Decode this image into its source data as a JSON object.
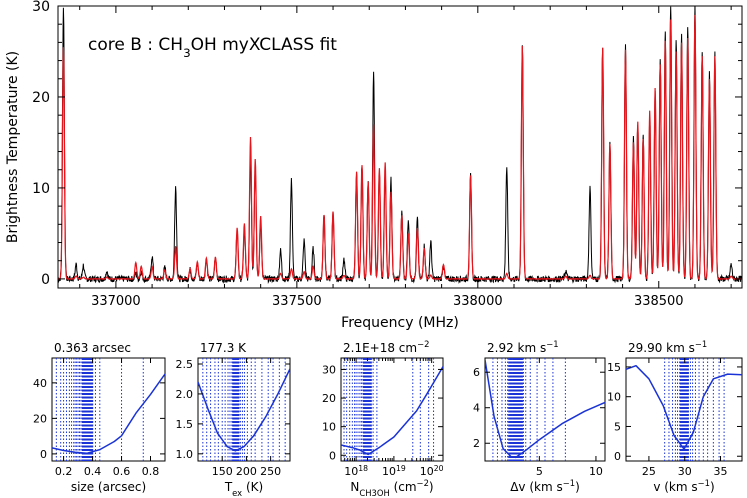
{
  "colors": {
    "observed": "#000000",
    "model": "#e8141b",
    "fit": "#1a33d6",
    "axes": "#000000"
  },
  "chart_data": [
    {
      "type": "line",
      "annotation": {
        "prefix": "core B : CH",
        "sub": "3",
        "suffix": "OH myXCLASS fit"
      },
      "xlabel": "Frequency (MHz)",
      "ylabel": "Brightness Temperature (K)",
      "xlim": [
        336840,
        338730
      ],
      "ylim": [
        -1,
        30
      ],
      "xticks": [
        337000,
        337500,
        338000,
        338500
      ],
      "xtick_labels": [
        "337000",
        "337500",
        "338000",
        "338500"
      ],
      "yticks": [
        0,
        10,
        20,
        30
      ],
      "ytick_labels": [
        "0",
        "10",
        "20",
        "30"
      ],
      "series": [],
      "lines": [
        {
          "x": 336855,
          "obs": 30,
          "mod": 25.5
        },
        {
          "x": 336890,
          "obs": 1.6,
          "mod": 0.3
        },
        {
          "x": 336910,
          "obs": 1.5,
          "mod": 0.2
        },
        {
          "x": 336975,
          "obs": 0.9,
          "mod": 0.2
        },
        {
          "x": 337055,
          "obs": 0.6,
          "mod": 1.8
        },
        {
          "x": 337070,
          "obs": 0.8,
          "mod": 1.4
        },
        {
          "x": 337100,
          "obs": 2.5,
          "mod": 1.3
        },
        {
          "x": 337135,
          "obs": 1.2,
          "mod": 1.0
        },
        {
          "x": 337165,
          "obs": 10.2,
          "mod": 3.6
        },
        {
          "x": 337205,
          "obs": 1.0,
          "mod": 1.1
        },
        {
          "x": 337225,
          "obs": 1.6,
          "mod": 1.9
        },
        {
          "x": 337250,
          "obs": 2.1,
          "mod": 2.3
        },
        {
          "x": 337275,
          "obs": 2.3,
          "mod": 2.4
        },
        {
          "x": 337335,
          "obs": 5.3,
          "mod": 5.6
        },
        {
          "x": 337355,
          "obs": 5.4,
          "mod": 6.1
        },
        {
          "x": 337372,
          "obs": 13.8,
          "mod": 15.6
        },
        {
          "x": 337385,
          "obs": 12.4,
          "mod": 13.2
        },
        {
          "x": 337400,
          "obs": 6.2,
          "mod": 6.9
        },
        {
          "x": 337455,
          "obs": 3.1,
          "mod": 0.6
        },
        {
          "x": 337485,
          "obs": 10.8,
          "mod": 1.1
        },
        {
          "x": 337520,
          "obs": 4.2,
          "mod": 0.8
        },
        {
          "x": 337545,
          "obs": 3.3,
          "mod": 1.4
        },
        {
          "x": 337575,
          "obs": 7.2,
          "mod": 7.0
        },
        {
          "x": 337600,
          "obs": 7.4,
          "mod": 7.4
        },
        {
          "x": 337630,
          "obs": 2.2,
          "mod": 0.4
        },
        {
          "x": 337665,
          "obs": 11.6,
          "mod": 11.8
        },
        {
          "x": 337680,
          "obs": 12.6,
          "mod": 12.5
        },
        {
          "x": 337697,
          "obs": 10.5,
          "mod": 10.7
        },
        {
          "x": 337712,
          "obs": 23.0,
          "mod": 17.0
        },
        {
          "x": 337728,
          "obs": 11.9,
          "mod": 12.2
        },
        {
          "x": 337744,
          "obs": 11.8,
          "mod": 12.8
        },
        {
          "x": 337760,
          "obs": 10.9,
          "mod": 9.6
        },
        {
          "x": 337790,
          "obs": 7.2,
          "mod": 7.0
        },
        {
          "x": 337808,
          "obs": 6.6,
          "mod": 5.0
        },
        {
          "x": 337833,
          "obs": 6.6,
          "mod": 5.6
        },
        {
          "x": 337852,
          "obs": 3.6,
          "mod": 3.4
        },
        {
          "x": 337870,
          "obs": 4.1,
          "mod": 0.4
        },
        {
          "x": 337905,
          "obs": 1.5,
          "mod": 1.6
        },
        {
          "x": 337980,
          "obs": 11.3,
          "mod": 11.4
        },
        {
          "x": 338080,
          "obs": 12.3,
          "mod": 0.6
        },
        {
          "x": 338123,
          "obs": 25.8,
          "mod": 25.6
        },
        {
          "x": 338243,
          "obs": 0.9,
          "mod": 0.3
        },
        {
          "x": 338310,
          "obs": 10.0,
          "mod": 0.4
        },
        {
          "x": 338345,
          "obs": 25.7,
          "mod": 25.4
        },
        {
          "x": 338365,
          "obs": 14.9,
          "mod": 14.8
        },
        {
          "x": 338408,
          "obs": 25.7,
          "mod": 25.2
        },
        {
          "x": 338430,
          "obs": 15.5,
          "mod": 15.0
        },
        {
          "x": 338442,
          "obs": 17.0,
          "mod": 17.3
        },
        {
          "x": 338457,
          "obs": 15.7,
          "mod": 15.4
        },
        {
          "x": 338475,
          "obs": 18.0,
          "mod": 18.5
        },
        {
          "x": 338490,
          "obs": 20.5,
          "mod": 21.0
        },
        {
          "x": 338504,
          "obs": 24.2,
          "mod": 23.6
        },
        {
          "x": 338518,
          "obs": 27.5,
          "mod": 26.2
        },
        {
          "x": 338533,
          "obs": 30,
          "mod": 28.5
        },
        {
          "x": 338548,
          "obs": 26.5,
          "mod": 25.0
        },
        {
          "x": 338563,
          "obs": 27.0,
          "mod": 26.0
        },
        {
          "x": 338580,
          "obs": 28.0,
          "mod": 26.5
        },
        {
          "x": 338600,
          "obs": 30,
          "mod": 29.0
        },
        {
          "x": 338620,
          "obs": 25.0,
          "mod": 24.5
        },
        {
          "x": 338640,
          "obs": 22.5,
          "mod": 22.0
        },
        {
          "x": 338655,
          "obs": 24.8,
          "mod": 24.5
        },
        {
          "x": 338700,
          "obs": 1.6,
          "mod": 0.3
        }
      ]
    },
    {
      "type": "line",
      "title": "0.363 arcsec",
      "xlabel": "size (arcsec)",
      "xscale": "linear",
      "xlim": [
        0.12,
        0.9
      ],
      "ylim": [
        -4,
        54
      ],
      "xticks": [
        0.2,
        0.4,
        0.6,
        0.8
      ],
      "xtick_labels": [
        "0.2",
        "0.4",
        "0.6",
        "0.8"
      ],
      "yticks": [
        0,
        20,
        40
      ],
      "ytick_labels": [
        "0",
        "20",
        "40"
      ],
      "curve": [
        [
          0.12,
          3.4
        ],
        [
          0.2,
          1.9
        ],
        [
          0.28,
          0.9
        ],
        [
          0.363,
          0.4
        ],
        [
          0.45,
          2.4
        ],
        [
          0.55,
          7.0
        ],
        [
          0.6,
          10.2
        ],
        [
          0.7,
          23.0
        ],
        [
          0.8,
          33.5
        ],
        [
          0.9,
          45.0
        ]
      ],
      "tried": [
        0.15,
        0.18,
        0.2,
        0.22,
        0.24,
        0.255,
        0.27,
        0.28,
        0.29,
        0.3,
        0.31,
        0.32,
        0.33,
        0.34,
        0.35,
        0.36,
        0.37,
        0.38,
        0.39,
        0.4,
        0.42,
        0.45,
        0.6,
        0.75
      ],
      "best": 0.363,
      "best_band": [
        0.33,
        0.4
      ]
    },
    {
      "type": "line",
      "title": "177.3 K",
      "xlabel": {
        "main": "T",
        "sub": "ex",
        "suffix": " (K)"
      },
      "xscale": "linear",
      "xlim": [
        100,
        290
      ],
      "ylim": [
        0.88,
        2.6
      ],
      "xticks": [
        150,
        200,
        250
      ],
      "xtick_labels": [
        "150",
        "200",
        "250"
      ],
      "yticks": [
        1.0,
        1.5,
        2.0,
        2.5
      ],
      "ytick_labels": [
        "1.0",
        "1.5",
        "2.0",
        "2.5"
      ],
      "curve": [
        [
          100,
          2.2
        ],
        [
          120,
          1.76
        ],
        [
          140,
          1.35
        ],
        [
          160,
          1.12
        ],
        [
          177.3,
          1.05
        ],
        [
          195,
          1.12
        ],
        [
          215,
          1.3
        ],
        [
          240,
          1.62
        ],
        [
          265,
          2.0
        ],
        [
          290,
          2.42
        ]
      ],
      "tried": [
        110,
        118,
        126,
        135,
        142,
        150,
        156,
        162,
        166,
        170,
        173,
        176,
        179,
        182,
        185,
        188,
        192,
        196,
        202,
        210,
        218,
        232,
        245,
        255,
        268,
        280
      ],
      "best": 177.3,
      "best_band": [
        172,
        184
      ]
    },
    {
      "type": "line",
      "title": {
        "main": "2.1E+18 cm",
        "sup": "−2"
      },
      "xlabel": {
        "main": "N",
        "sub": "CH3OH",
        "suffix": " (cm",
        "sup": "−2",
        "end": ")"
      },
      "xscale": "log",
      "xlim": [
        17.6,
        20.3
      ],
      "ylim": [
        -2,
        34
      ],
      "xticks": [
        18,
        19,
        20
      ],
      "xtick_labels": [
        "10",
        "10",
        "10"
      ],
      "xtick_sups": [
        "18",
        "19",
        "20"
      ],
      "yticks": [
        0,
        10,
        20,
        30
      ],
      "ytick_labels": [
        "0",
        "10",
        "20",
        "30"
      ],
      "curve": [
        [
          17.6,
          3.6
        ],
        [
          17.9,
          2.7
        ],
        [
          18.1,
          1.8
        ],
        [
          18.32,
          0.3
        ],
        [
          18.6,
          2.6
        ],
        [
          19.0,
          6.4
        ],
        [
          19.6,
          15.5
        ],
        [
          19.9,
          22.0
        ],
        [
          20.3,
          31.0
        ]
      ],
      "tried": [
        17.68,
        17.75,
        17.83,
        17.9,
        17.96,
        18.0,
        18.05,
        18.1,
        18.14,
        18.18,
        18.22,
        18.26,
        18.3,
        18.34,
        18.38,
        18.45,
        18.55,
        19.5,
        19.7,
        19.92,
        20.05
      ],
      "best": 18.32,
      "best_band": [
        18.2,
        18.4
      ]
    },
    {
      "type": "line",
      "title": {
        "main": "2.92 km s",
        "sup": "−1"
      },
      "xlabel": {
        "main": "Δv (km s",
        "sup": "−1",
        "end": ")"
      },
      "xscale": "linear",
      "xlim": [
        0.2,
        10.8
      ],
      "ylim": [
        1.0,
        6.8
      ],
      "xticks": [
        5,
        10
      ],
      "xtick_labels": [
        "5",
        "10"
      ],
      "yticks": [
        2,
        4,
        6
      ],
      "ytick_labels": [
        "2",
        "4",
        "6"
      ],
      "curve": [
        [
          0.2,
          6.7
        ],
        [
          1.0,
          3.5
        ],
        [
          1.8,
          1.7
        ],
        [
          2.5,
          1.25
        ],
        [
          2.92,
          1.2
        ],
        [
          3.8,
          1.6
        ],
        [
          5,
          2.2
        ],
        [
          7,
          3.1
        ],
        [
          9,
          3.8
        ],
        [
          10.8,
          4.3
        ]
      ],
      "tried": [
        0.9,
        1.3,
        1.7,
        2.0,
        2.2,
        2.4,
        2.55,
        2.7,
        2.85,
        3.0,
        3.15,
        3.3,
        3.45,
        3.6,
        3.8,
        4.2,
        4.8,
        5.5,
        6.2,
        7.3
      ],
      "best": 2.92,
      "best_band": [
        2.3,
        3.5
      ]
    },
    {
      "type": "line",
      "title": {
        "main": "29.90 km s",
        "sup": "−1"
      },
      "xlabel": {
        "main": "v (km s",
        "sup": "−1",
        "end": ")"
      },
      "xscale": "linear",
      "xlim": [
        21.8,
        38.0
      ],
      "ylim": [
        -0.8,
        16.5
      ],
      "xticks": [
        25,
        30,
        35
      ],
      "xtick_labels": [
        "25",
        "30",
        "35"
      ],
      "yticks": [
        0,
        5,
        10,
        15
      ],
      "ytick_labels": [
        "0",
        "5",
        "10",
        "15"
      ],
      "curve": [
        [
          21.8,
          14.6
        ],
        [
          23.2,
          15.2
        ],
        [
          25,
          13.0
        ],
        [
          27,
          8.5
        ],
        [
          28.5,
          3.5
        ],
        [
          29.9,
          1.2
        ],
        [
          31.2,
          4.0
        ],
        [
          32.6,
          10.0
        ],
        [
          34,
          13.0
        ],
        [
          36,
          13.8
        ],
        [
          38,
          13.7
        ]
      ],
      "tried": [
        27.2,
        27.8,
        28.3,
        28.7,
        29.0,
        29.3,
        29.6,
        29.9,
        30.2,
        30.5,
        30.8,
        31.1,
        31.5,
        32.0,
        32.6,
        33.2,
        34.0,
        34.8,
        35.5
      ],
      "best": 29.9,
      "best_band": [
        29.4,
        30.5
      ]
    }
  ]
}
